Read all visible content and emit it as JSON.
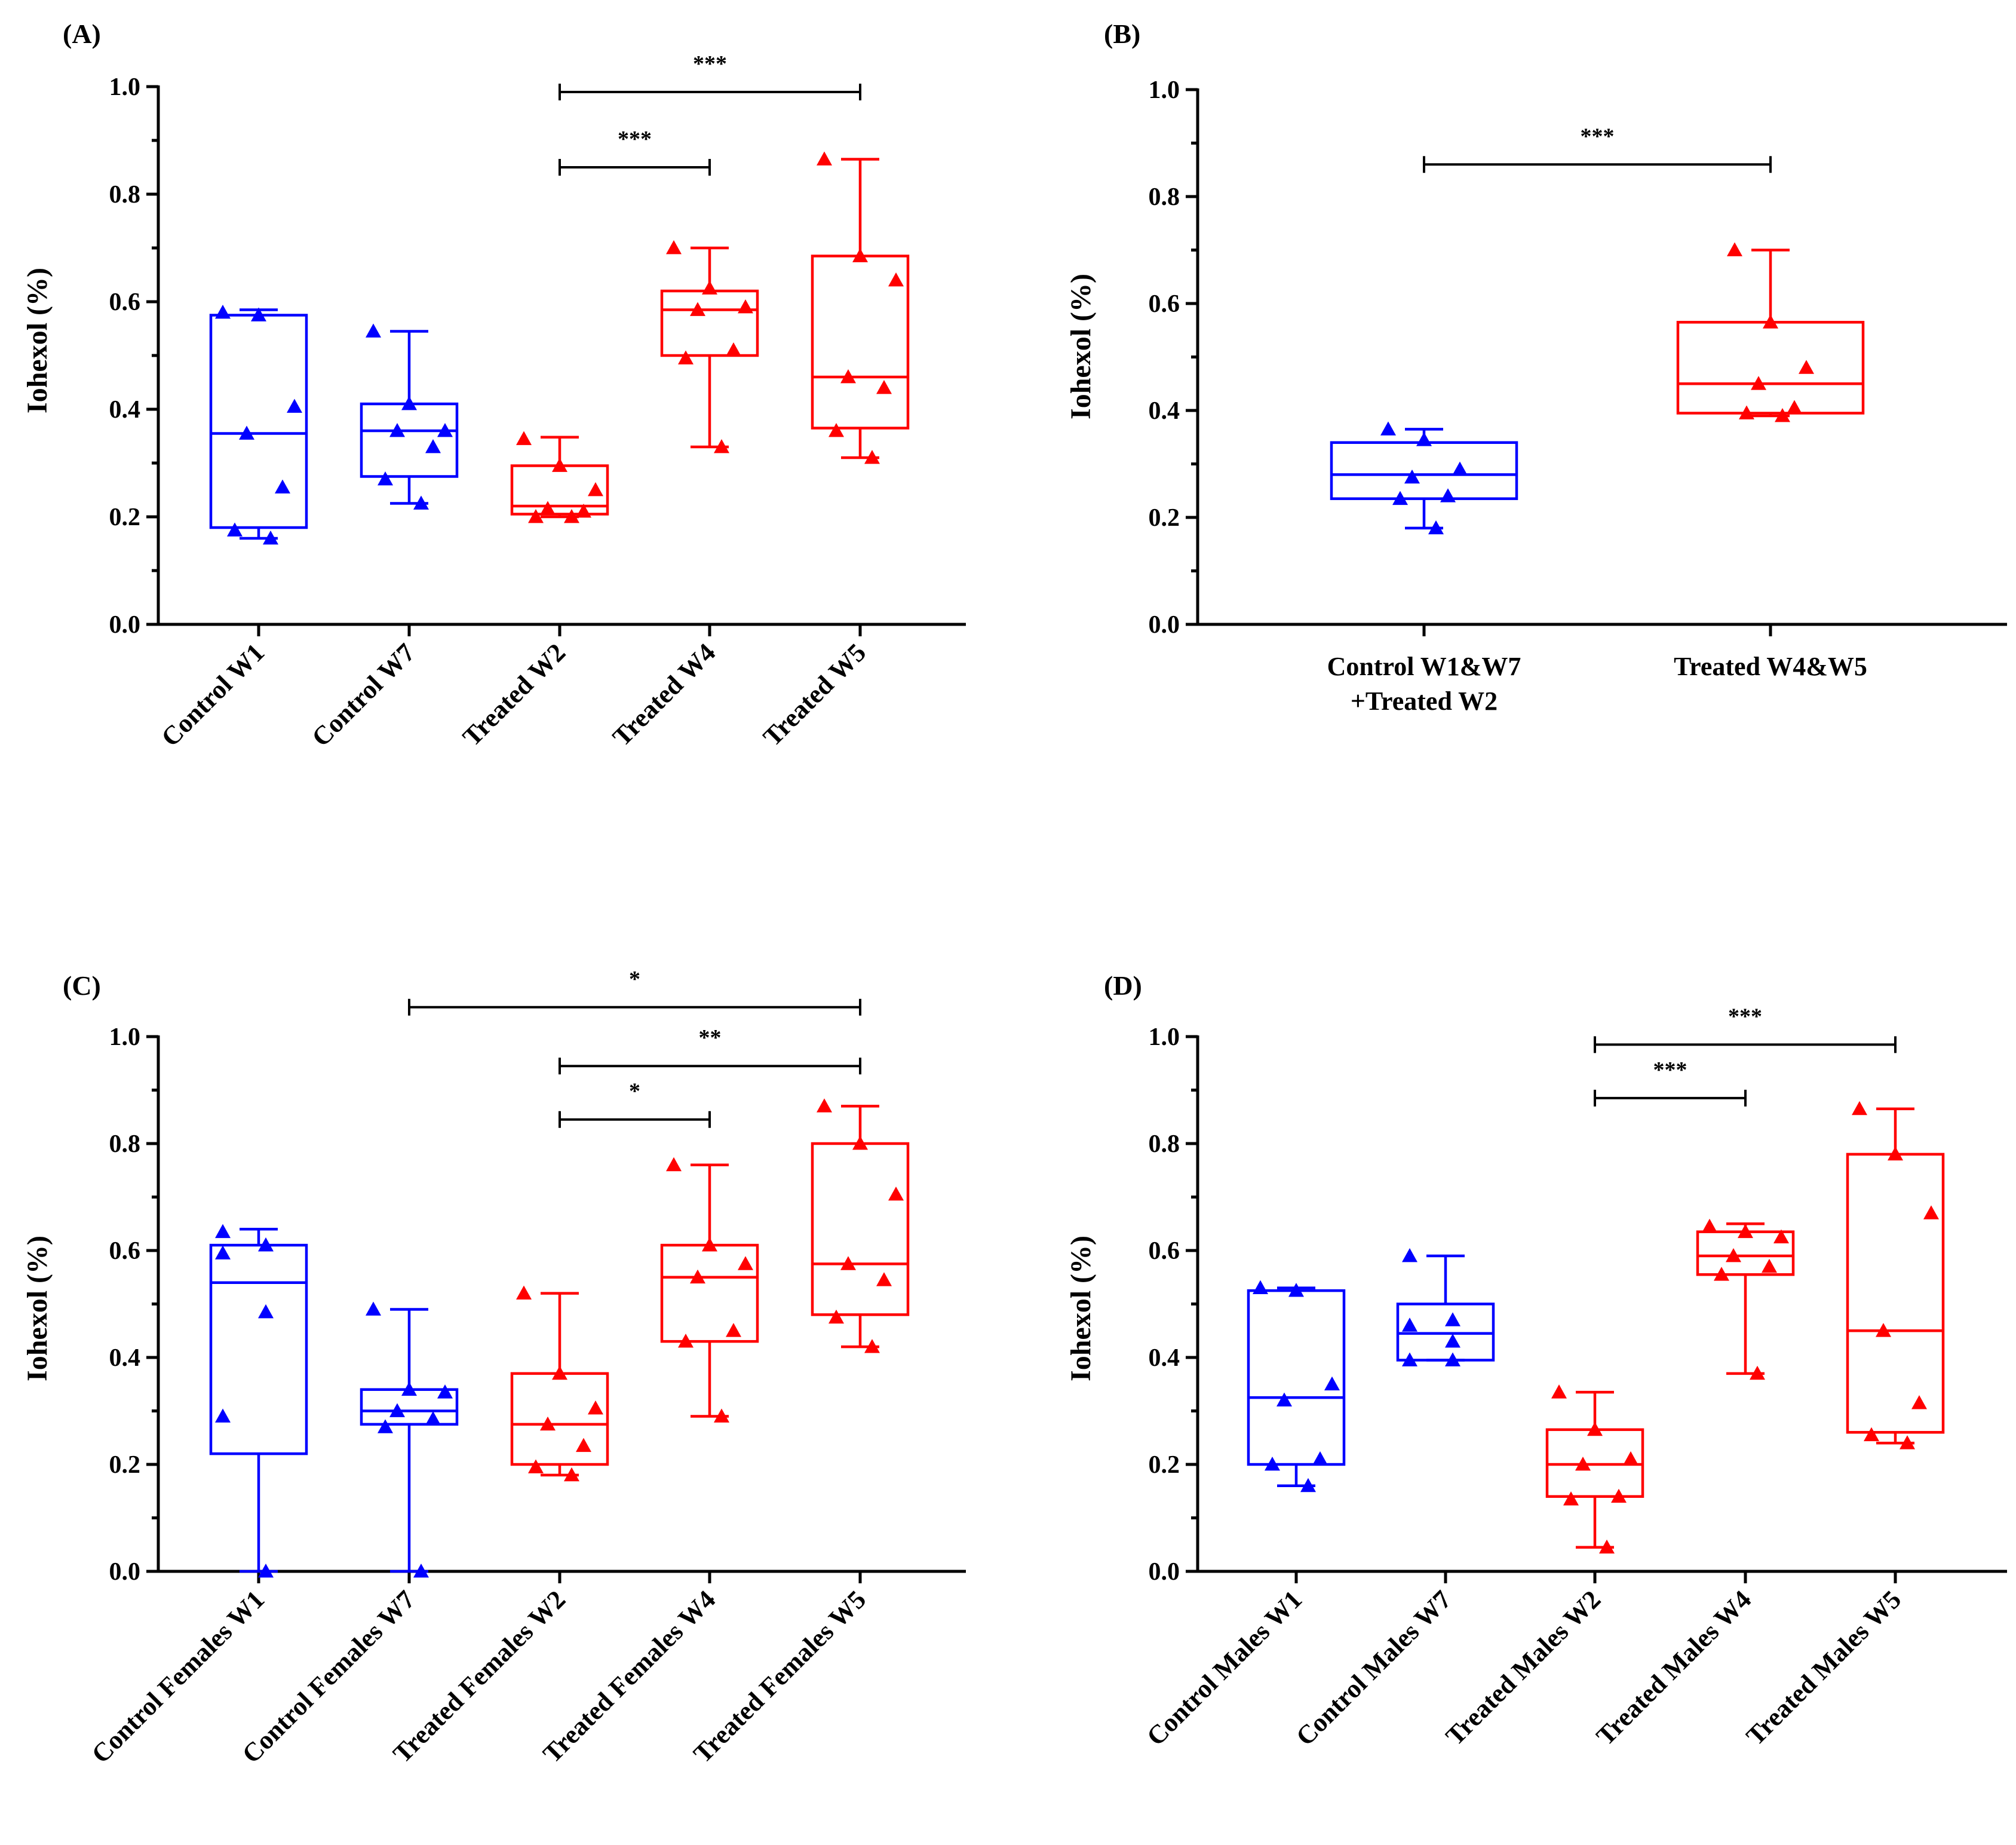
{
  "colors": {
    "control": "#0000ff",
    "treated": "#ff0000",
    "axis": "#000000"
  },
  "chart_data": [
    {
      "id": "A",
      "panel_label": "(A)",
      "type": "box",
      "ylabel": "Iohexol (%)",
      "ylim": [
        0,
        1
      ],
      "yticks": [
        "0.0",
        "0.2",
        "0.4",
        "0.6",
        "0.8",
        "1.0"
      ],
      "categories": [
        "Control W1",
        "Control W7",
        "Treated W2",
        "Treated W4",
        "Treated W5"
      ],
      "groups": [
        {
          "name": "Control W1",
          "color": "control",
          "min": 0.16,
          "q1": 0.18,
          "median": 0.355,
          "q3": 0.575,
          "max": 0.585,
          "points": [
            0.58,
            0.575,
            0.405,
            0.355,
            0.255,
            0.175,
            0.16
          ]
        },
        {
          "name": "Control W7",
          "color": "control",
          "min": 0.225,
          "q1": 0.275,
          "median": 0.36,
          "q3": 0.41,
          "max": 0.545,
          "points": [
            0.545,
            0.41,
            0.36,
            0.36,
            0.33,
            0.27,
            0.225
          ]
        },
        {
          "name": "Treated W2",
          "color": "treated",
          "min": 0.2,
          "q1": 0.205,
          "median": 0.22,
          "q3": 0.295,
          "max": 0.348,
          "points": [
            0.345,
            0.295,
            0.25,
            0.215,
            0.21,
            0.2,
            0.2
          ]
        },
        {
          "name": "Treated W4",
          "color": "treated",
          "min": 0.33,
          "q1": 0.5,
          "median": 0.585,
          "q3": 0.62,
          "max": 0.7,
          "points": [
            0.7,
            0.625,
            0.59,
            0.585,
            0.51,
            0.495,
            0.33
          ]
        },
        {
          "name": "Treated W5",
          "color": "treated",
          "min": 0.31,
          "q1": 0.365,
          "median": 0.46,
          "q3": 0.685,
          "max": 0.865,
          "points": [
            0.865,
            0.685,
            0.64,
            0.46,
            0.44,
            0.36,
            0.31
          ]
        }
      ],
      "comparisons": [
        {
          "from": 2,
          "to": 3,
          "label": "***",
          "y": 0.85
        },
        {
          "from": 2,
          "to": 4,
          "label": "***",
          "y": 0.99
        }
      ]
    },
    {
      "id": "B",
      "panel_label": "(B)",
      "type": "box",
      "ylabel": "Iohexol (%)",
      "ylim": [
        0,
        1
      ],
      "yticks": [
        "0.0",
        "0.2",
        "0.4",
        "0.6",
        "0.8",
        "1.0"
      ],
      "categories": [
        [
          "Control W1&W7",
          "+Treated W2"
        ],
        [
          "Treated W4&W5"
        ]
      ],
      "groups": [
        {
          "name": "Control W1&W7 +Treated W2",
          "color": "control",
          "min": 0.18,
          "q1": 0.235,
          "median": 0.28,
          "q3": 0.34,
          "max": 0.365,
          "points": [
            0.365,
            0.345,
            0.29,
            0.275,
            0.24,
            0.235,
            0.18
          ]
        },
        {
          "name": "Treated W4&W5",
          "color": "treated",
          "min": 0.39,
          "q1": 0.395,
          "median": 0.45,
          "q3": 0.565,
          "max": 0.7,
          "points": [
            0.7,
            0.565,
            0.48,
            0.45,
            0.405,
            0.395,
            0.39
          ]
        }
      ],
      "comparisons": [
        {
          "from": 0,
          "to": 1,
          "label": "***",
          "y": 0.86
        }
      ]
    },
    {
      "id": "C",
      "panel_label": "(C)",
      "type": "box",
      "ylabel": "Iohexol (%)",
      "ylim": [
        0,
        1
      ],
      "yticks": [
        "0.0",
        "0.2",
        "0.4",
        "0.6",
        "0.8",
        "1.0"
      ],
      "categories": [
        "Control Females W1",
        "Control Females W7",
        "Treated Females W2",
        "Treated Females W4",
        "Treated Females W5"
      ],
      "groups": [
        {
          "name": "Control Females W1",
          "color": "control",
          "min": 0.0,
          "q1": 0.22,
          "median": 0.54,
          "q3": 0.61,
          "max": 0.64,
          "points": [
            0.635,
            0.61,
            0.595,
            0.485,
            0.29,
            0.0
          ]
        },
        {
          "name": "Control Females W7",
          "color": "control",
          "min": 0.0,
          "q1": 0.275,
          "median": 0.3,
          "q3": 0.34,
          "max": 0.49,
          "points": [
            0.49,
            0.34,
            0.335,
            0.3,
            0.285,
            0.27,
            0.0
          ]
        },
        {
          "name": "Treated Females W2",
          "color": "treated",
          "min": 0.18,
          "q1": 0.2,
          "median": 0.275,
          "q3": 0.37,
          "max": 0.52,
          "points": [
            0.52,
            0.37,
            0.305,
            0.275,
            0.235,
            0.195,
            0.18
          ]
        },
        {
          "name": "Treated Females W4",
          "color": "treated",
          "min": 0.29,
          "q1": 0.43,
          "median": 0.55,
          "q3": 0.61,
          "max": 0.76,
          "points": [
            0.76,
            0.61,
            0.575,
            0.55,
            0.45,
            0.43,
            0.29
          ]
        },
        {
          "name": "Treated Females W5",
          "color": "treated",
          "min": 0.42,
          "q1": 0.48,
          "median": 0.575,
          "q3": 0.8,
          "max": 0.87,
          "points": [
            0.87,
            0.8,
            0.705,
            0.575,
            0.545,
            0.475,
            0.42
          ]
        }
      ],
      "comparisons": [
        {
          "from": 2,
          "to": 3,
          "label": "*",
          "y": 0.845
        },
        {
          "from": 2,
          "to": 4,
          "label": "**",
          "y": 0.945
        },
        {
          "from": 1,
          "to": 4,
          "label": "*",
          "y": 1.055
        }
      ]
    },
    {
      "id": "D",
      "panel_label": "(D)",
      "type": "box",
      "ylabel": "Iohexol (%)",
      "ylim": [
        0,
        1
      ],
      "yticks": [
        "0.0",
        "0.2",
        "0.4",
        "0.6",
        "0.8",
        "1.0"
      ],
      "categories": [
        "Control Males W1",
        "Control Males W7",
        "Treated Males W2",
        "Treated Males W4",
        "Treated Males W5"
      ],
      "groups": [
        {
          "name": "Control Males W1",
          "color": "control",
          "min": 0.16,
          "q1": 0.2,
          "median": 0.325,
          "q3": 0.525,
          "max": 0.53,
          "points": [
            0.53,
            0.525,
            0.35,
            0.32,
            0.21,
            0.2,
            0.16
          ]
        },
        {
          "name": "Control Males W7",
          "color": "control",
          "min": 0.395,
          "q1": 0.395,
          "median": 0.445,
          "q3": 0.5,
          "max": 0.59,
          "points": [
            0.59,
            0.47,
            0.46,
            0.43,
            0.395,
            0.395
          ]
        },
        {
          "name": "Treated Males W2",
          "color": "treated",
          "min": 0.045,
          "q1": 0.14,
          "median": 0.2,
          "q3": 0.265,
          "max": 0.335,
          "points": [
            0.335,
            0.265,
            0.21,
            0.2,
            0.14,
            0.135,
            0.045
          ]
        },
        {
          "name": "Treated Males W4",
          "color": "treated",
          "min": 0.37,
          "q1": 0.555,
          "median": 0.59,
          "q3": 0.635,
          "max": 0.65,
          "points": [
            0.645,
            0.635,
            0.625,
            0.59,
            0.57,
            0.555,
            0.37
          ]
        },
        {
          "name": "Treated Males W5",
          "color": "treated",
          "min": 0.24,
          "q1": 0.26,
          "median": 0.45,
          "q3": 0.78,
          "max": 0.865,
          "points": [
            0.865,
            0.78,
            0.67,
            0.45,
            0.315,
            0.255,
            0.24
          ]
        }
      ],
      "comparisons": [
        {
          "from": 2,
          "to": 3,
          "label": "***",
          "y": 0.885
        },
        {
          "from": 2,
          "to": 4,
          "label": "***",
          "y": 0.985
        }
      ]
    }
  ]
}
